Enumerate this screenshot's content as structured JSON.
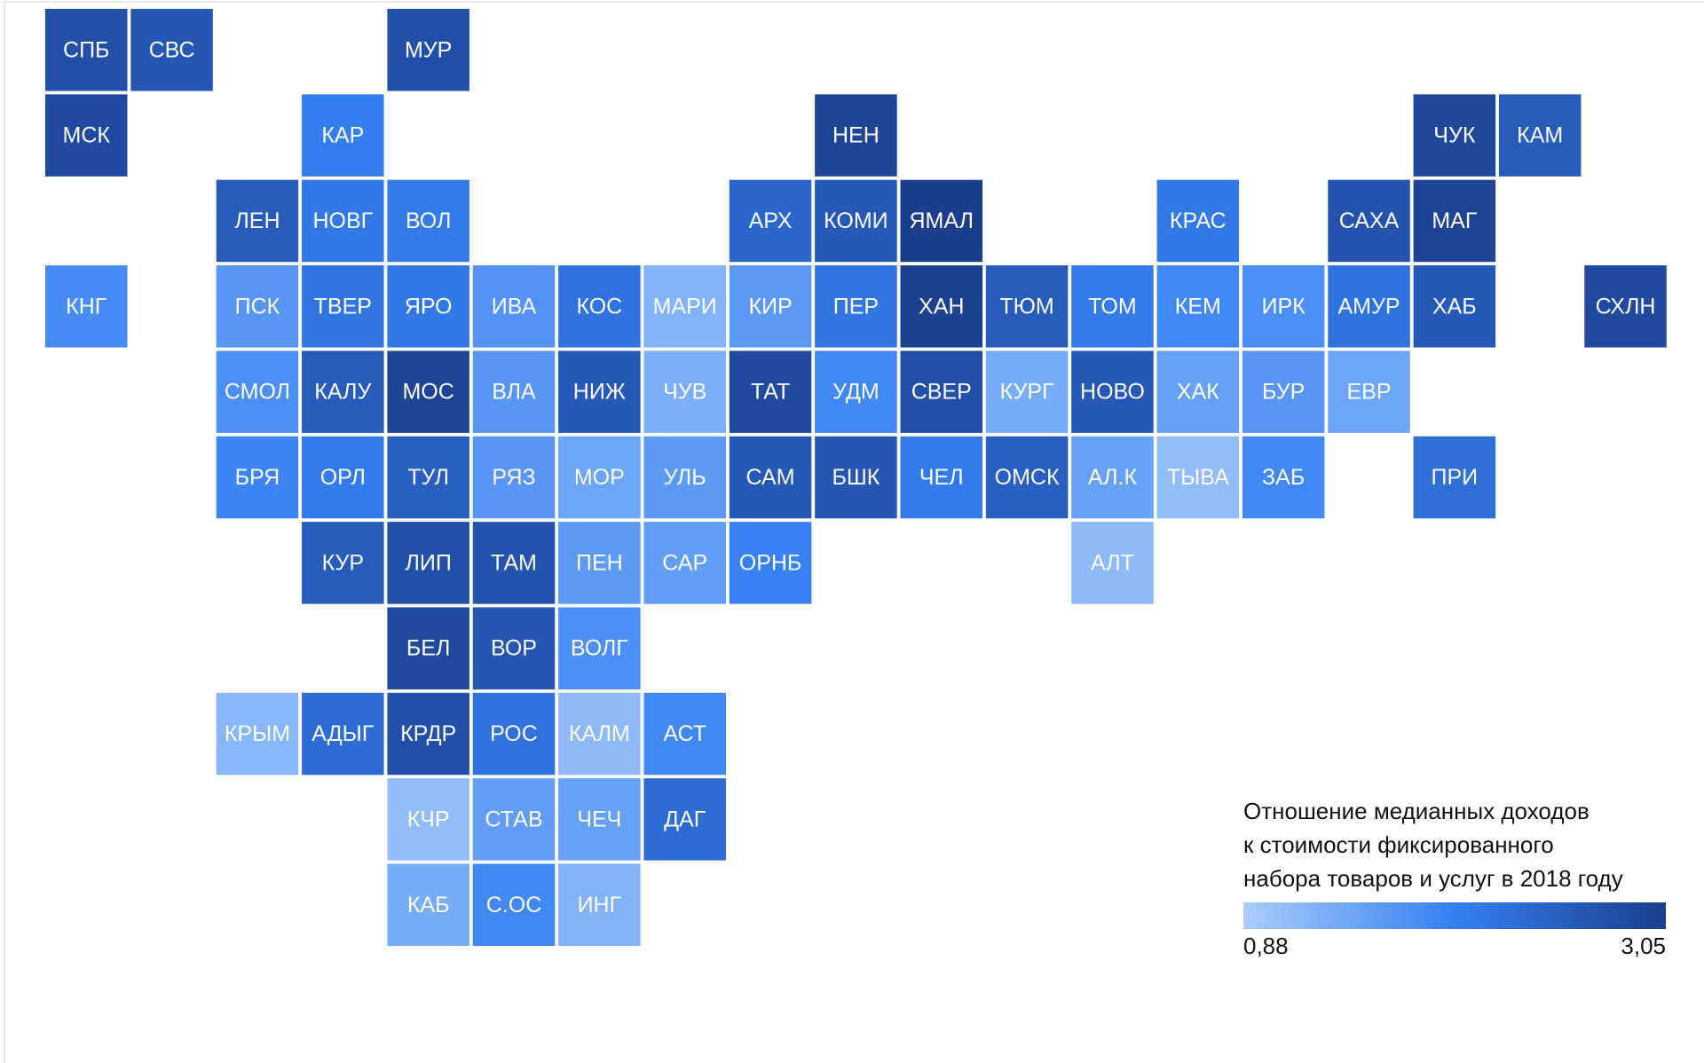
{
  "map": {
    "scale": {
      "colors": [
        "#aacdfb",
        "#3580f3",
        "#1b3e8c"
      ],
      "min": {
        "value": 0.88,
        "label": "0,88"
      },
      "max": {
        "value": 3.05,
        "label": "3,05"
      }
    },
    "legend": {
      "title": [
        "Отношение медианных доходов",
        "к стоимости фиксированного",
        "набора товаров и услуг в 2018 году"
      ]
    },
    "rows": [
      [
        {
          "label": "СПБ",
          "value": 2.75
        },
        {
          "label": "СВС",
          "value": 2.65
        },
        null,
        null,
        {
          "label": "МУР",
          "value": 2.75
        }
      ],
      [
        {
          "label": "МСК",
          "value": 2.85
        },
        null,
        null,
        {
          "label": "КАР",
          "value": 2.0
        },
        null,
        null,
        null,
        null,
        null,
        {
          "label": "НЕН",
          "value": 2.95
        },
        null,
        null,
        null,
        null,
        null,
        null,
        {
          "label": "ЧУК",
          "value": 2.9
        },
        {
          "label": "КАМ",
          "value": 2.55
        }
      ],
      [
        null,
        null,
        {
          "label": "ЛЕН",
          "value": 2.55
        },
        {
          "label": "НОВГ",
          "value": 2.1
        },
        {
          "label": "ВОЛ",
          "value": 2.05
        },
        null,
        null,
        null,
        {
          "label": "АРХ",
          "value": 2.4
        },
        {
          "label": "КОМИ",
          "value": 2.6
        },
        {
          "label": "ЯМАЛ",
          "value": 3.05
        },
        null,
        null,
        {
          "label": "КРАС",
          "value": 2.1
        },
        null,
        {
          "label": "САХА",
          "value": 2.7
        },
        {
          "label": "МАГ",
          "value": 2.95
        }
      ],
      [
        {
          "label": "КНГ",
          "value": 1.8
        },
        null,
        {
          "label": "ПСК",
          "value": 1.65
        },
        {
          "label": "ТВЕР",
          "value": 2.15
        },
        {
          "label": "ЯРО",
          "value": 2.1
        },
        {
          "label": "ИВА",
          "value": 1.7
        },
        {
          "label": "КОС",
          "value": 2.2
        },
        {
          "label": "МАРИ",
          "value": 1.25
        },
        {
          "label": "КИР",
          "value": 1.6
        },
        {
          "label": "ПЕР",
          "value": 2.15
        },
        {
          "label": "ХАН",
          "value": 3.0
        },
        {
          "label": "ТЮМ",
          "value": 2.55
        },
        {
          "label": "ТОМ",
          "value": 2.05
        },
        {
          "label": "КЕМ",
          "value": 1.85
        },
        {
          "label": "ИРК",
          "value": 1.75
        },
        {
          "label": "АМУР",
          "value": 2.2
        },
        {
          "label": "ХАБ",
          "value": 2.6
        },
        null,
        {
          "label": "СХЛН",
          "value": 2.85
        }
      ],
      [
        null,
        null,
        {
          "label": "СМОЛ",
          "value": 1.75
        },
        {
          "label": "КАЛУ",
          "value": 2.55
        },
        {
          "label": "МОС",
          "value": 2.95
        },
        {
          "label": "ВЛА",
          "value": 1.65
        },
        {
          "label": "НИЖ",
          "value": 2.6
        },
        {
          "label": "ЧУВ",
          "value": 1.3
        },
        {
          "label": "ТАТ",
          "value": 2.85
        },
        {
          "label": "УДМ",
          "value": 1.85
        },
        {
          "label": "СВЕР",
          "value": 2.75
        },
        {
          "label": "КУРГ",
          "value": 1.35
        },
        {
          "label": "НОВО",
          "value": 2.6
        },
        {
          "label": "ХАК",
          "value": 1.5
        },
        {
          "label": "БУР",
          "value": 1.65
        },
        {
          "label": "ЕВР",
          "value": 1.45
        }
      ],
      [
        null,
        null,
        {
          "label": "БРЯ",
          "value": 1.9
        },
        {
          "label": "ОРЛ",
          "value": 2.05
        },
        {
          "label": "ТУЛ",
          "value": 2.5
        },
        {
          "label": "РЯЗ",
          "value": 1.65
        },
        {
          "label": "МОР",
          "value": 1.45
        },
        {
          "label": "УЛЬ",
          "value": 1.6
        },
        {
          "label": "САМ",
          "value": 2.6
        },
        {
          "label": "БШК",
          "value": 2.65
        },
        {
          "label": "ЧЕЛ",
          "value": 2.05
        },
        {
          "label": "ОМСК",
          "value": 2.5
        },
        {
          "label": "АЛ.К",
          "value": 1.5
        },
        {
          "label": "ТЫВА",
          "value": 1.1
        },
        {
          "label": "ЗАБ",
          "value": 1.85
        },
        null,
        {
          "label": "ПРИ",
          "value": 2.25
        }
      ],
      [
        null,
        null,
        null,
        {
          "label": "КУР",
          "value": 2.55
        },
        {
          "label": "ЛИП",
          "value": 2.75
        },
        {
          "label": "ТАМ",
          "value": 2.7
        },
        {
          "label": "ПЕН",
          "value": 1.6
        },
        {
          "label": "САР",
          "value": 1.55
        },
        {
          "label": "ОРНБ",
          "value": 1.95
        },
        null,
        null,
        null,
        {
          "label": "АЛТ",
          "value": 1.15
        }
      ],
      [
        null,
        null,
        null,
        null,
        {
          "label": "БЕЛ",
          "value": 2.85
        },
        {
          "label": "ВОР",
          "value": 2.65
        },
        {
          "label": "ВОЛГ",
          "value": 1.75
        }
      ],
      [
        null,
        null,
        {
          "label": "КРЫМ",
          "value": 1.2
        },
        {
          "label": "АДЫГ",
          "value": 2.3
        },
        {
          "label": "КРДР",
          "value": 2.75
        },
        {
          "label": "РОС",
          "value": 2.2
        },
        {
          "label": "КАЛМ",
          "value": 1.15
        },
        {
          "label": "АСТ",
          "value": 1.85
        }
      ],
      [
        null,
        null,
        null,
        null,
        {
          "label": "КЧР",
          "value": 1.1
        },
        {
          "label": "СТАВ",
          "value": 1.55
        },
        {
          "label": "ЧЕЧ",
          "value": 1.5
        },
        {
          "label": "ДАГ",
          "value": 2.3
        }
      ],
      [
        null,
        null,
        null,
        null,
        {
          "label": "КАБ",
          "value": 1.35
        },
        {
          "label": "С.ОС",
          "value": 1.85
        },
        {
          "label": "ИНГ",
          "value": 1.25
        }
      ]
    ]
  }
}
